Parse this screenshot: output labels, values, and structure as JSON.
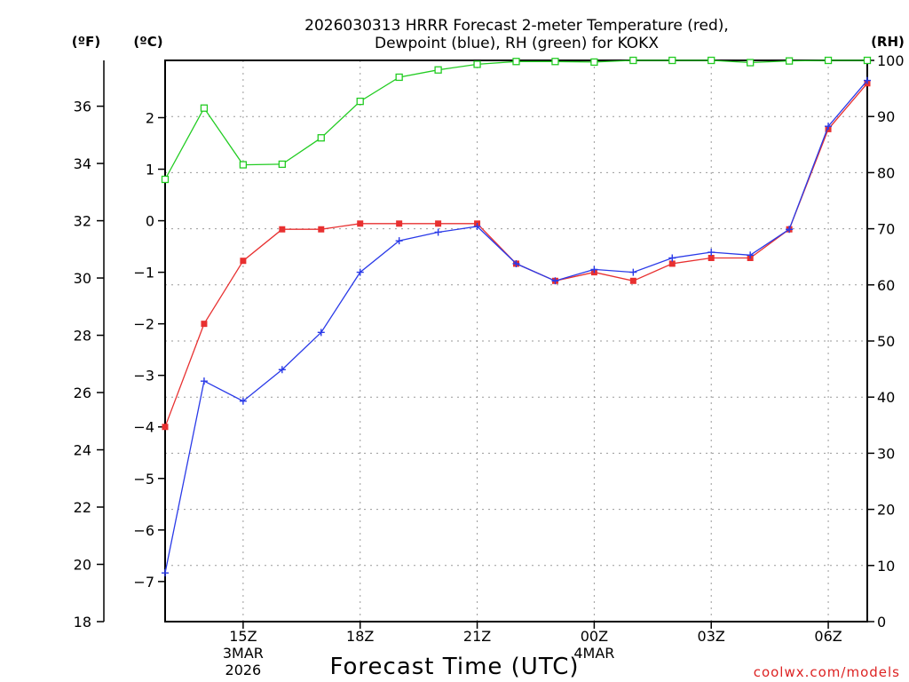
{
  "chart_data": {
    "type": "line",
    "title_line1": "2026030313 HRRR Forecast 2-meter Temperature (red),",
    "title_line2": "Dewpoint (blue), RH (green) for KOKX",
    "xlabel": "Forecast Time (UTC)",
    "credit": "coolwx.com/models",
    "units": {
      "fahrenheit": "(ºF)",
      "celsius": "(ºC)",
      "rh": "(RH)"
    },
    "hours": [
      0,
      1,
      2,
      3,
      4,
      5,
      6,
      7,
      8,
      9,
      10,
      11,
      12,
      13,
      14,
      15,
      16,
      17,
      18
    ],
    "x_ticks": [
      {
        "hour": 2,
        "label": "15Z",
        "sub1": "3MAR",
        "sub2": "2026"
      },
      {
        "hour": 5,
        "label": "18Z",
        "sub1": "",
        "sub2": ""
      },
      {
        "hour": 8,
        "label": "21Z",
        "sub1": "",
        "sub2": ""
      },
      {
        "hour": 11,
        "label": "00Z",
        "sub1": "4MAR",
        "sub2": ""
      },
      {
        "hour": 14,
        "label": "03Z",
        "sub1": "",
        "sub2": ""
      },
      {
        "hour": 17,
        "label": "06Z",
        "sub1": "",
        "sub2": ""
      }
    ],
    "xlim": [
      0,
      18
    ],
    "fahrenheit_axis": {
      "ylim": [
        18,
        37.6
      ],
      "ticks": [
        18,
        20,
        22,
        24,
        26,
        28,
        30,
        32,
        34,
        36
      ]
    },
    "celsius_axis": {
      "ticks": [
        -7,
        -6,
        -5,
        -4,
        -3,
        -2,
        -1,
        0,
        1,
        2
      ]
    },
    "rh_axis": {
      "ylim": [
        0,
        100
      ],
      "ticks": [
        0,
        10,
        20,
        30,
        40,
        50,
        60,
        70,
        80,
        90,
        100
      ]
    },
    "series": [
      {
        "name": "Temperature",
        "color": "#e83030",
        "units": "F",
        "marker": "filled-square",
        "values": [
          24.8,
          28.4,
          30.6,
          31.7,
          31.7,
          31.9,
          31.9,
          31.9,
          31.9,
          30.5,
          29.9,
          30.2,
          29.9,
          30.5,
          30.7,
          30.7,
          31.7,
          35.2,
          36.8
        ]
      },
      {
        "name": "Dewpoint",
        "color": "#2a3ae8",
        "units": "F",
        "marker": "plus",
        "values": [
          19.7,
          26.4,
          25.7,
          26.8,
          28.1,
          30.2,
          31.3,
          31.6,
          31.8,
          30.5,
          29.9,
          30.3,
          30.2,
          30.7,
          30.9,
          30.8,
          31.7,
          35.3,
          36.9
        ]
      },
      {
        "name": "RH",
        "color": "#22cc22",
        "units": "%",
        "marker": "open-square",
        "values": [
          78.8,
          91.5,
          81.4,
          81.5,
          86.2,
          92.7,
          97.0,
          98.3,
          99.3,
          99.8,
          99.8,
          99.7,
          100,
          100,
          100,
          99.6,
          99.9,
          100,
          100
        ]
      }
    ]
  }
}
